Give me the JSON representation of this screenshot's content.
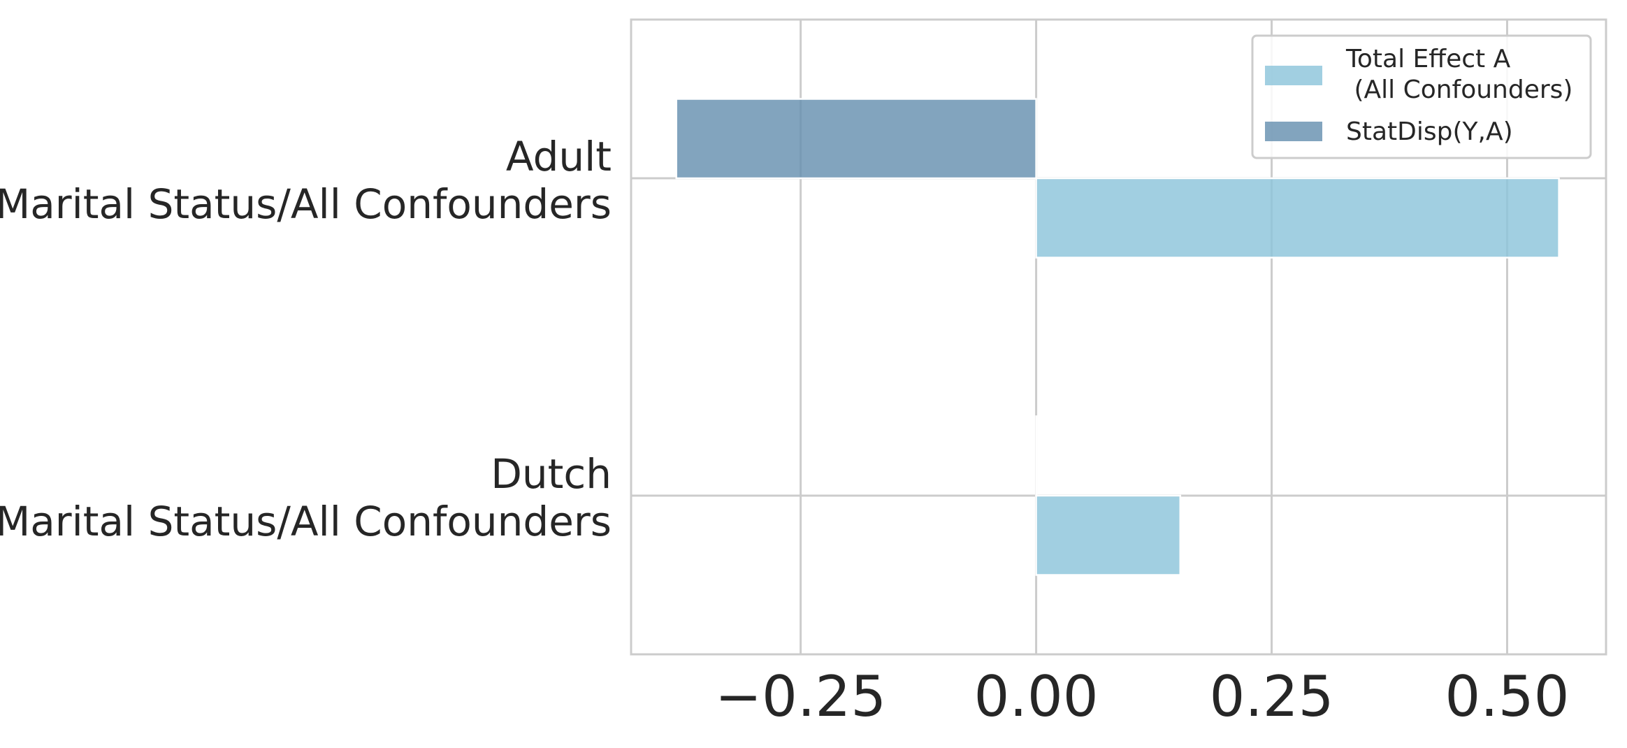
{
  "chart_data": {
    "type": "bar",
    "orientation": "horizontal",
    "categories": [
      [
        "Adult",
        "Marital Status/All Confounders"
      ],
      [
        "Dutch",
        "Marital Status/All Confounders"
      ]
    ],
    "series": [
      {
        "name": "Total Effect A\n (All Confounders)",
        "legend_lines": [
          "Total Effect A",
          " (All Confounders)"
        ],
        "values": [
          0.555,
          0.153
        ],
        "color": "#8cc5da"
      },
      {
        "name": "StatDisp(Y,A)",
        "legend_lines": [
          "StatDisp(Y,A)"
        ],
        "values": [
          -0.382,
          0.0
        ],
        "color": "#6690b0"
      }
    ],
    "xticks": [
      -0.25,
      0.0,
      0.25,
      0.5
    ],
    "xtick_labels": [
      "−0.25",
      "0.00",
      "0.25",
      "0.50"
    ],
    "xlim": [
      -0.43,
      0.605
    ],
    "grid": true,
    "legend_position": "top-right",
    "title": "",
    "xlabel": "",
    "ylabel": ""
  }
}
